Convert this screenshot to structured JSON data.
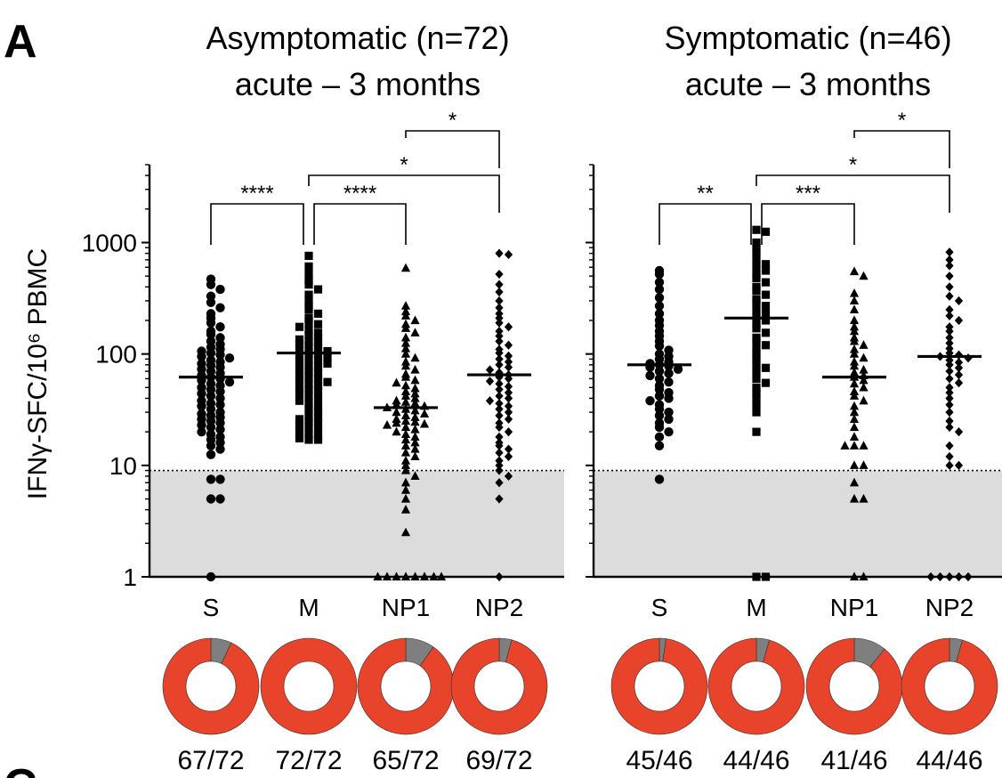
{
  "figure": {
    "panel_letter": "A",
    "next_panel_letter": "C"
  },
  "chart_data": [
    {
      "type": "scatter",
      "subtype": "dot plot (log scale) with median lines",
      "title_line1": "Asymptomatic (n=72)",
      "title_line2": "acute – 3 months",
      "ylabel": "IFNγ-SFC/10⁶ PBMC",
      "yscale": "log",
      "ylim": [
        1,
        5000
      ],
      "yticks": [
        1,
        10,
        100,
        1000
      ],
      "yticklabels": [
        "1",
        "10",
        "100",
        "1000"
      ],
      "detection_threshold": 9,
      "categories": [
        "S",
        "M",
        "NP1",
        "NP2"
      ],
      "markers": [
        "circle",
        "square",
        "triangle",
        "diamond"
      ],
      "medians": [
        62,
        102,
        33,
        65
      ],
      "series": [
        {
          "name": "S",
          "values": [
            470,
            420,
            380,
            330,
            290,
            260,
            230,
            210,
            190,
            175,
            160,
            150,
            140,
            130,
            122,
            115,
            110,
            106,
            102,
            98,
            95,
            92,
            88,
            85,
            82,
            79,
            76,
            73,
            70,
            67,
            64,
            62,
            60,
            58,
            56,
            54,
            52,
            50,
            48,
            46,
            44,
            42,
            40,
            38,
            36,
            35,
            34,
            32,
            30,
            29,
            28,
            27,
            26,
            25,
            24,
            23,
            22,
            21,
            20,
            19,
            18,
            17,
            16,
            15,
            14,
            12.5,
            7.5,
            7.5,
            5,
            5,
            1
          ]
        },
        {
          "name": "M",
          "values": [
            760,
            610,
            520,
            460,
            420,
            380,
            340,
            300,
            270,
            250,
            230,
            210,
            195,
            185,
            175,
            165,
            155,
            148,
            140,
            135,
            130,
            126,
            122,
            118,
            114,
            110,
            106,
            103,
            100,
            97,
            94,
            91,
            88,
            85,
            82,
            79,
            76,
            73,
            70,
            67,
            65,
            62,
            60,
            58,
            56,
            54,
            52,
            50,
            48,
            46,
            44,
            42,
            40,
            38,
            36,
            34,
            32,
            30,
            28,
            27,
            26,
            25,
            24,
            23,
            22,
            21,
            20,
            19,
            18,
            17,
            17,
            17.5
          ]
        },
        {
          "name": "NP1",
          "values": [
            590,
            270,
            240,
            220,
            200,
            185,
            170,
            155,
            140,
            125,
            112,
            100,
            92,
            85,
            78,
            72,
            66,
            62,
            58,
            55,
            52,
            49,
            46,
            44,
            42,
            40,
            38,
            37,
            36,
            35,
            34,
            33,
            32,
            31,
            30,
            29,
            28,
            27,
            26,
            25,
            24.5,
            24,
            23.5,
            23,
            22,
            21,
            20,
            19,
            18,
            17,
            16,
            15,
            14,
            13,
            12,
            11,
            10,
            9,
            8,
            7,
            6,
            5,
            4,
            2.5,
            1,
            1,
            1,
            1,
            1,
            1,
            1,
            1
          ]
        },
        {
          "name": "NP2",
          "values": [
            800,
            780,
            520,
            420,
            360,
            300,
            260,
            230,
            210,
            190,
            175,
            160,
            145,
            130,
            120,
            110,
            102,
            96,
            90,
            85,
            80,
            76,
            72,
            68,
            65,
            62,
            60,
            57,
            54,
            51,
            48,
            45,
            42,
            40,
            38,
            36,
            34,
            32,
            30,
            28,
            26,
            24,
            22,
            20,
            18,
            16,
            15,
            14,
            13,
            12,
            11,
            10,
            9,
            8,
            7,
            5,
            1
          ]
        }
      ],
      "significance": [
        {
          "from": "S",
          "to": "M",
          "label": "****",
          "level": 0
        },
        {
          "from": "M",
          "to": "NP1",
          "label": "****",
          "level": 0
        },
        {
          "from": "M",
          "to": "NP2",
          "label": "*",
          "level": 1
        },
        {
          "from": "NP1",
          "to": "NP2",
          "label": "*",
          "level": 2
        }
      ],
      "donuts": [
        {
          "category": "S",
          "responders": 67,
          "total": 72,
          "label": "67/72"
        },
        {
          "category": "M",
          "responders": 72,
          "total": 72,
          "label": "72/72"
        },
        {
          "category": "NP1",
          "responders": 65,
          "total": 72,
          "label": "65/72"
        },
        {
          "category": "NP2",
          "responders": 69,
          "total": 72,
          "label": "69/72"
        }
      ]
    },
    {
      "type": "scatter",
      "subtype": "dot plot (log scale) with median lines",
      "title_line1": "Symptomatic (n=46)",
      "title_line2": "acute – 3 months",
      "yscale": "log",
      "ylim": [
        1,
        5000
      ],
      "detection_threshold": 9,
      "categories": [
        "S",
        "M",
        "NP1",
        "NP2"
      ],
      "markers": [
        "circle",
        "square",
        "triangle",
        "diamond"
      ],
      "medians": [
        80,
        210,
        62,
        95
      ],
      "series": [
        {
          "name": "S",
          "values": [
            560,
            520,
            440,
            380,
            320,
            270,
            230,
            200,
            180,
            160,
            145,
            130,
            118,
            108,
            100,
            95,
            90,
            85,
            82,
            80,
            78,
            76,
            73,
            70,
            67,
            64,
            60,
            56,
            52,
            48,
            45,
            42,
            40,
            38,
            35,
            32,
            30,
            28,
            26,
            24,
            22,
            20,
            18,
            15,
            7.5
          ]
        },
        {
          "name": "M",
          "values": [
            1300,
            1250,
            1000,
            900,
            800,
            700,
            640,
            600,
            560,
            520,
            480,
            440,
            400,
            370,
            340,
            310,
            290,
            270,
            250,
            230,
            215,
            200,
            185,
            170,
            155,
            140,
            130,
            120,
            110,
            100,
            90,
            80,
            75,
            70,
            60,
            55,
            50,
            45,
            40,
            35,
            30,
            20,
            1,
            1
          ]
        },
        {
          "name": "NP1",
          "values": [
            550,
            500,
            350,
            300,
            250,
            200,
            175,
            160,
            140,
            130,
            120,
            110,
            100,
            92,
            85,
            78,
            72,
            68,
            64,
            62,
            58,
            54,
            50,
            46,
            42,
            38,
            34,
            30,
            26,
            22,
            18,
            15,
            15,
            15,
            10,
            10,
            7,
            5,
            5,
            1,
            1
          ]
        },
        {
          "name": "NP2",
          "values": [
            820,
            700,
            620,
            500,
            400,
            330,
            300,
            250,
            220,
            200,
            175,
            160,
            140,
            125,
            112,
            102,
            98,
            95,
            92,
            88,
            84,
            80,
            75,
            70,
            65,
            60,
            55,
            50,
            45,
            40,
            35,
            30,
            25,
            22,
            20,
            15,
            12,
            10,
            10,
            1,
            1,
            1,
            1,
            1
          ]
        }
      ],
      "significance": [
        {
          "from": "S",
          "to": "M",
          "label": "**",
          "level": 0
        },
        {
          "from": "M",
          "to": "NP1",
          "label": "***",
          "level": 0
        },
        {
          "from": "M",
          "to": "NP2",
          "label": "*",
          "level": 1
        },
        {
          "from": "NP1",
          "to": "NP2",
          "label": "*",
          "level": 2
        }
      ],
      "donuts": [
        {
          "category": "S",
          "responders": 45,
          "total": 46,
          "label": "45/46"
        },
        {
          "category": "M",
          "responders": 44,
          "total": 46,
          "label": "44/46"
        },
        {
          "category": "NP1",
          "responders": 41,
          "total": 46,
          "label": "41/46"
        },
        {
          "category": "NP2",
          "responders": 44,
          "total": 46,
          "label": "44/46"
        }
      ]
    }
  ],
  "colors": {
    "responder": "#e8432b",
    "nonresponder": "#7f7f7f",
    "below_threshold_band": "#dcdcdc",
    "ink": "#000000"
  }
}
